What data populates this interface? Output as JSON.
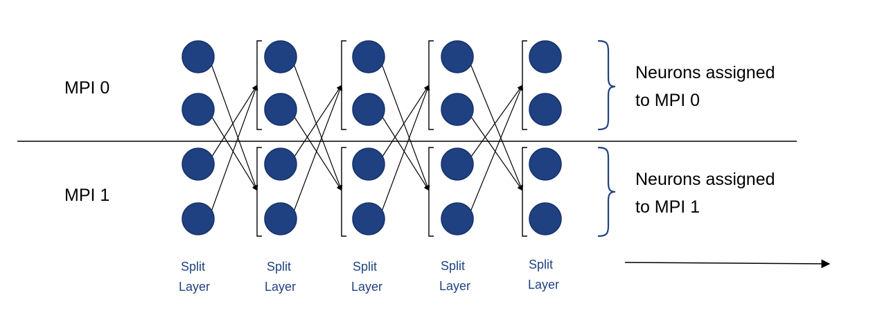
{
  "rows": [
    {
      "label": "MPI 0",
      "note": [
        "Neurons assigned",
        "to MPI 0"
      ]
    },
    {
      "label": "MPI 1",
      "note": [
        "Neurons assigned",
        "to MPI 1"
      ]
    }
  ],
  "layers": [
    {
      "caption": [
        "Split",
        "Layer"
      ],
      "neurons": 4
    },
    {
      "caption": [
        "Split",
        "Layer"
      ],
      "neurons": 4
    },
    {
      "caption": [
        "Split",
        "Layer"
      ],
      "neurons": 4
    },
    {
      "caption": [
        "Split",
        "Layer"
      ],
      "neurons": 4
    },
    {
      "caption": [
        "Split",
        "Layer"
      ],
      "neurons": 4
    }
  ],
  "colors": {
    "neuron": "#1f4181",
    "neuron_outline": "#17326a",
    "caption": "#1f4181",
    "bracket": "#1f4181",
    "line": "#000000"
  },
  "icons": {
    "row_divider": "horizontal-line",
    "group_bracket": "curly-brace-icon",
    "direction": "arrow-right-icon"
  }
}
